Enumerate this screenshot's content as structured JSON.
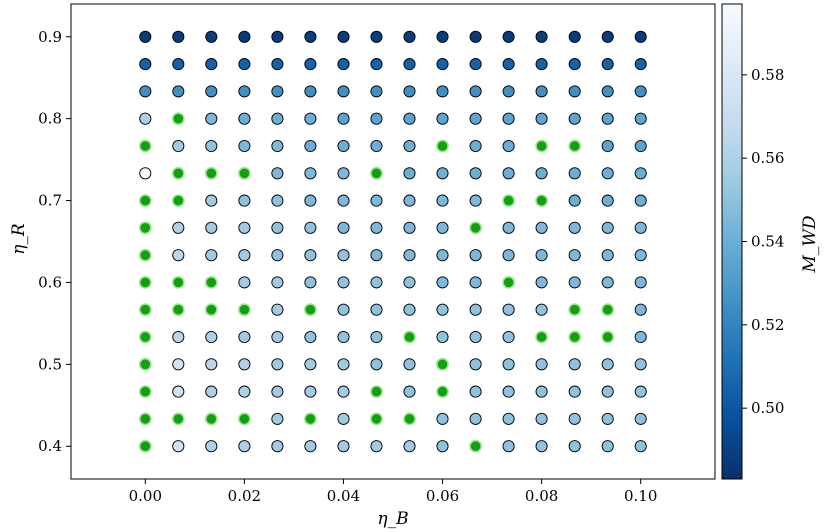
{
  "chart_data": {
    "type": "scatter",
    "title": "",
    "xlabel": "η_B",
    "ylabel": "η_R",
    "xlim": [
      -0.015,
      0.115
    ],
    "ylim": [
      0.36,
      0.94
    ],
    "x_ticks": [
      0.0,
      0.02,
      0.04,
      0.06,
      0.08,
      0.1
    ],
    "x_tick_labels": [
      "0.00",
      "0.02",
      "0.04",
      "0.06",
      "0.08",
      "0.10"
    ],
    "y_ticks": [
      0.4,
      0.5,
      0.6,
      0.7,
      0.8,
      0.9
    ],
    "y_tick_labels": [
      "0.4",
      "0.5",
      "0.6",
      "0.7",
      "0.8",
      "0.9"
    ],
    "grid": false,
    "x_values": [
      0.0,
      0.00667,
      0.01333,
      0.02,
      0.02667,
      0.03333,
      0.04,
      0.04667,
      0.05333,
      0.06,
      0.06667,
      0.07333,
      0.08,
      0.08667,
      0.09333,
      0.1
    ],
    "y_values": [
      0.4,
      0.43333,
      0.46667,
      0.5,
      0.53333,
      0.56667,
      0.6,
      0.63333,
      0.66667,
      0.7,
      0.73333,
      0.76667,
      0.8,
      0.83333,
      0.86667,
      0.9
    ],
    "color_values": [
      [
        null,
        0.575,
        0.56,
        0.56,
        0.555,
        0.555,
        0.555,
        0.555,
        0.555,
        0.55,
        null,
        0.55,
        0.55,
        0.55,
        0.55,
        0.55
      ],
      [
        null,
        null,
        null,
        null,
        0.555,
        null,
        0.555,
        null,
        null,
        0.55,
        0.55,
        0.55,
        0.55,
        0.55,
        0.55,
        0.55
      ],
      [
        null,
        0.575,
        0.56,
        0.56,
        0.555,
        0.555,
        0.555,
        null,
        0.55,
        null,
        0.55,
        0.55,
        0.55,
        0.55,
        0.55,
        0.55
      ],
      [
        null,
        0.575,
        0.565,
        0.56,
        0.555,
        0.555,
        0.555,
        0.55,
        0.55,
        null,
        0.55,
        0.55,
        0.55,
        0.55,
        0.55,
        0.55
      ],
      [
        null,
        0.565,
        0.56,
        0.555,
        0.555,
        0.55,
        0.55,
        0.55,
        null,
        0.55,
        0.55,
        0.55,
        null,
        null,
        null,
        0.545
      ],
      [
        null,
        null,
        null,
        null,
        0.555,
        null,
        0.55,
        0.55,
        0.55,
        0.55,
        0.55,
        0.55,
        0.55,
        null,
        null,
        0.545
      ],
      [
        null,
        null,
        null,
        0.555,
        0.555,
        0.55,
        0.55,
        0.55,
        0.55,
        0.545,
        0.545,
        null,
        0.545,
        0.545,
        0.545,
        0.545
      ],
      [
        null,
        0.565,
        0.555,
        0.555,
        0.55,
        0.55,
        0.55,
        0.545,
        0.545,
        0.545,
        0.545,
        0.545,
        0.545,
        0.545,
        0.545,
        0.545
      ],
      [
        null,
        0.56,
        0.555,
        0.555,
        0.55,
        0.55,
        0.545,
        0.545,
        0.545,
        0.545,
        null,
        0.545,
        0.545,
        0.545,
        0.545,
        0.545
      ],
      [
        null,
        null,
        0.555,
        0.55,
        0.55,
        0.545,
        0.545,
        0.545,
        0.545,
        0.545,
        0.545,
        null,
        null,
        0.54,
        0.54,
        0.54
      ],
      [
        0.597,
        null,
        null,
        null,
        0.545,
        0.545,
        0.545,
        null,
        0.54,
        0.54,
        0.54,
        0.54,
        0.54,
        0.54,
        0.54,
        0.54
      ],
      [
        null,
        0.555,
        0.55,
        0.545,
        0.545,
        0.54,
        0.54,
        0.54,
        0.54,
        null,
        0.54,
        0.54,
        null,
        null,
        0.535,
        0.535
      ],
      [
        0.56,
        null,
        0.545,
        0.54,
        0.54,
        0.54,
        0.535,
        0.535,
        0.535,
        0.535,
        0.535,
        0.535,
        0.535,
        0.535,
        0.535,
        0.535
      ],
      [
        0.525,
        0.525,
        0.525,
        0.525,
        0.525,
        0.525,
        0.525,
        0.525,
        0.525,
        0.525,
        0.525,
        0.525,
        0.525,
        0.525,
        0.525,
        0.525
      ],
      [
        0.505,
        0.505,
        0.505,
        0.505,
        0.505,
        0.505,
        0.505,
        0.505,
        0.505,
        0.505,
        0.505,
        0.505,
        0.505,
        0.505,
        0.505,
        0.505
      ],
      [
        0.488,
        0.488,
        0.488,
        0.488,
        0.488,
        0.488,
        0.488,
        0.488,
        0.488,
        0.488,
        0.488,
        0.488,
        0.488,
        0.488,
        0.488,
        0.488
      ]
    ],
    "colorbar": {
      "label": "M_WD",
      "colormap": "Blues_r",
      "range": [
        0.483,
        0.597
      ],
      "ticks": [
        0.5,
        0.52,
        0.54,
        0.56,
        0.58
      ],
      "tick_labels": [
        "0.50",
        "0.52",
        "0.54",
        "0.56",
        "0.58"
      ]
    },
    "colors": {
      "highlight_fill": "#12a012",
      "highlight_edge": "#9ce68e",
      "marker_edge": "#000000",
      "colormap_stops": [
        "#08306b",
        "#08519c",
        "#2171b5",
        "#4292c6",
        "#6baed6",
        "#9ecae1",
        "#c6dbef",
        "#deebf7",
        "#f7fbff"
      ]
    }
  }
}
